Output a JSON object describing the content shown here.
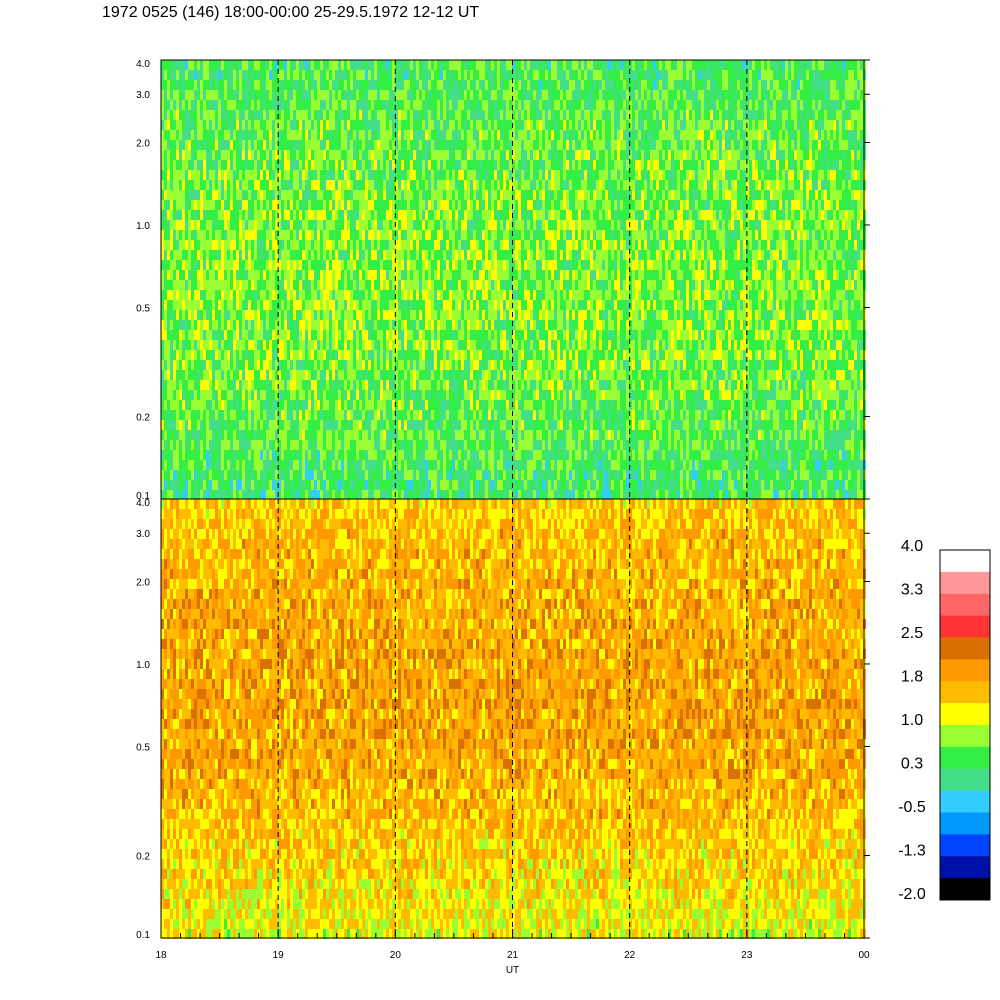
{
  "title": "1972 0525 (146) 18:00-00:00 25-29.5.1972  12-12 UT",
  "chart_data": {
    "type": "heatmap",
    "title": "1972 0525 (146) 18:00-00:00 25-29.5.1972  12-12 UT",
    "xlabel": "UT",
    "x_range": [
      18,
      24
    ],
    "x_ticks": [
      "18",
      "19",
      "20",
      "21",
      "22",
      "23",
      "00"
    ],
    "dashed_lines_at": [
      19,
      20,
      21,
      22,
      23
    ],
    "panels": [
      {
        "name": "upper",
        "y_scale": "log",
        "y_range": [
          0.1,
          4.0
        ],
        "y_ticks": [
          "0.1",
          "0.2",
          "0.5",
          "1.0",
          "2.0",
          "3.0",
          "4.0"
        ],
        "y_tick_values": [
          0.1,
          0.2,
          0.5,
          1.0,
          2.0,
          3.0,
          4.0
        ],
        "dominant_level": 0.5
      },
      {
        "name": "lower",
        "y_scale": "log",
        "y_range": [
          0.1,
          4.0
        ],
        "y_ticks": [
          "0.1",
          "0.2",
          "0.5",
          "1.0",
          "2.0",
          "3.0",
          "4.0"
        ],
        "y_tick_values": [
          0.1,
          0.2,
          0.5,
          1.0,
          2.0,
          3.0,
          4.0
        ],
        "dominant_level": 1.6
      }
    ],
    "colorbar": {
      "labels": [
        "4.0",
        "3.3",
        "2.5",
        "1.8",
        "1.0",
        "0.3",
        "-0.5",
        "-1.3",
        "-2.0"
      ],
      "colors": [
        "#ffffff",
        "#ff9999",
        "#ff6666",
        "#ff3333",
        "#d97000",
        "#ff9900",
        "#ffbb00",
        "#ffff00",
        "#99ff33",
        "#33ee44",
        "#44dd88",
        "#33ccff",
        "#0099ff",
        "#0044ff",
        "#0011aa",
        "#000000"
      ]
    }
  }
}
